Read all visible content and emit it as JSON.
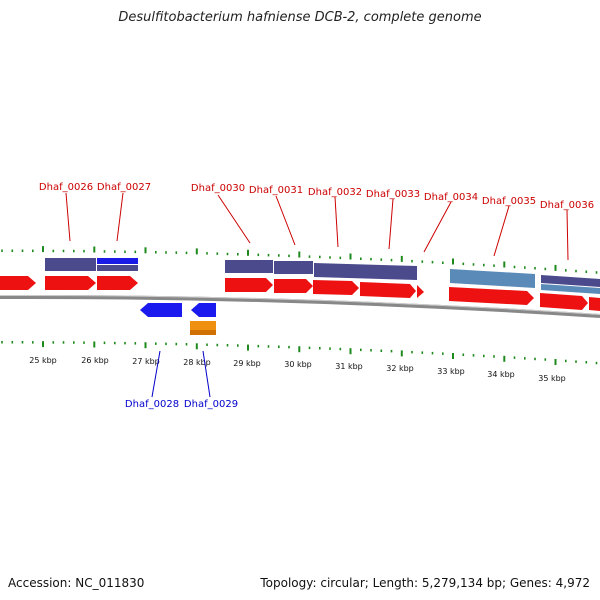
{
  "title": "Desulfitobacterium hafniense DCB-2, complete genome",
  "footer": {
    "accession": "Accession: NC_011830",
    "stats": "Topology: circular; Length: 5,279,134 bp; Genes: 4,972"
  },
  "colors": {
    "forward_cds": "#ee1111",
    "reverse_cds": "#1a1aee",
    "other_feature": "#f09010",
    "protein_navy": "#4a4a8c",
    "protein_blue": "#1a1ae6",
    "protein_steel": "#5a8ab8",
    "tick": "#1e8a1e",
    "label_forward": "#cc0000",
    "label_reverse": "#0000cc",
    "backbone": "#888888"
  },
  "scale": {
    "labels": [
      "25 kbp",
      "26 kbp",
      "27 kbp",
      "28 kbp",
      "29 kbp",
      "30 kbp",
      "31 kbp",
      "32 kbp",
      "33 kbp",
      "34 kbp",
      "35 kbp"
    ]
  },
  "gene_labels_top": [
    "Dhaf_0026",
    "Dhaf_0027",
    "Dhaf_0030",
    "Dhaf_0031",
    "Dhaf_0032",
    "Dhaf_0033",
    "Dhaf_0034",
    "Dhaf_0035",
    "Dhaf_0036"
  ],
  "gene_labels_bottom": [
    "Dhaf_0028",
    "Dhaf_0029"
  ]
}
